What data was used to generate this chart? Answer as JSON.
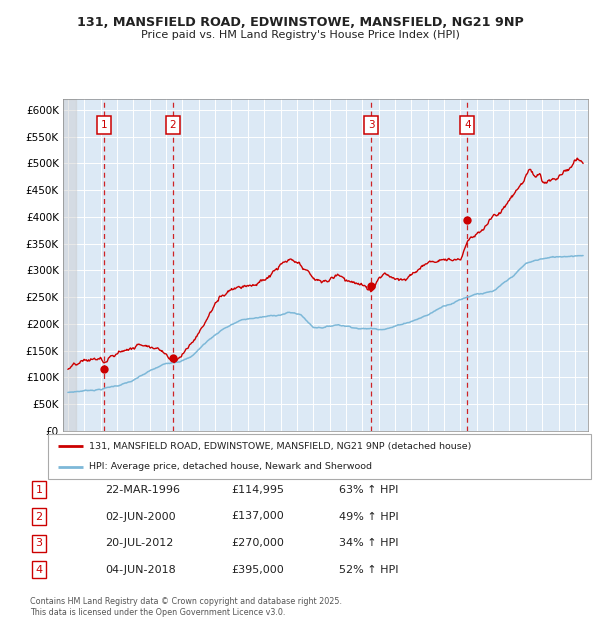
{
  "title_line1": "131, MANSFIELD ROAD, EDWINSTOWE, MANSFIELD, NG21 9NP",
  "title_line2": "Price paid vs. HM Land Registry's House Price Index (HPI)",
  "ylim": [
    0,
    620000
  ],
  "yticks": [
    0,
    50000,
    100000,
    150000,
    200000,
    250000,
    300000,
    350000,
    400000,
    450000,
    500000,
    550000,
    600000
  ],
  "ytick_labels": [
    "£0",
    "£50K",
    "£100K",
    "£150K",
    "£200K",
    "£250K",
    "£300K",
    "£350K",
    "£400K",
    "£450K",
    "£500K",
    "£550K",
    "£600K"
  ],
  "hpi_color": "#7db8d8",
  "price_color": "#cc0000",
  "bg_color": "#dce9f5",
  "grid_color": "#ffffff",
  "vline_color": "#cc0000",
  "sale_dates": [
    1996.22,
    2000.42,
    2012.55,
    2018.42
  ],
  "sale_prices": [
    114995,
    137000,
    270000,
    395000
  ],
  "sale_labels": [
    "1",
    "2",
    "3",
    "4"
  ],
  "legend_line1": "131, MANSFIELD ROAD, EDWINSTOWE, MANSFIELD, NG21 9NP (detached house)",
  "legend_line2": "HPI: Average price, detached house, Newark and Sherwood",
  "table_data": [
    [
      "1",
      "22-MAR-1996",
      "£114,995",
      "63% ↑ HPI"
    ],
    [
      "2",
      "02-JUN-2000",
      "£137,000",
      "49% ↑ HPI"
    ],
    [
      "3",
      "20-JUL-2012",
      "£270,000",
      "34% ↑ HPI"
    ],
    [
      "4",
      "04-JUN-2018",
      "£395,000",
      "52% ↑ HPI"
    ]
  ],
  "footnote": "Contains HM Land Registry data © Crown copyright and database right 2025.\nThis data is licensed under the Open Government Licence v3.0."
}
